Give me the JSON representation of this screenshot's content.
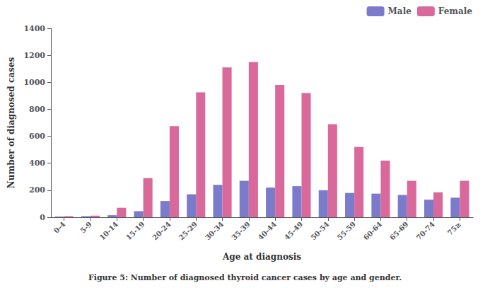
{
  "chart_data": {
    "type": "bar",
    "caption": "Figure 5: Number of diagnosed thyroid cancer cases by age and gender.",
    "xlabel": "Age at diagnosis",
    "ylabel": "Number of diagnosed cases",
    "categories": [
      "0-4",
      "5-9",
      "10-14",
      "15-19",
      "20-24",
      "25-29",
      "30-34",
      "35-39",
      "40-44",
      "45-49",
      "50-54",
      "55-59",
      "60-64",
      "65-69",
      "70-74",
      "75≥"
    ],
    "series": [
      {
        "name": "Male",
        "color": "#7b7bcc",
        "values": [
          5,
          8,
          15,
          45,
          120,
          170,
          240,
          270,
          220,
          230,
          200,
          180,
          175,
          165,
          130,
          145
        ]
      },
      {
        "name": "Female",
        "color": "#d9699a",
        "values": [
          8,
          12,
          70,
          290,
          675,
          925,
          1110,
          1150,
          980,
          920,
          690,
          520,
          420,
          270,
          185,
          270
        ]
      }
    ],
    "ylim": [
      0,
      1400
    ],
    "yticks": [
      0,
      200,
      400,
      600,
      800,
      1000,
      1200,
      1400
    ],
    "grid": false,
    "legend": "upper right"
  }
}
